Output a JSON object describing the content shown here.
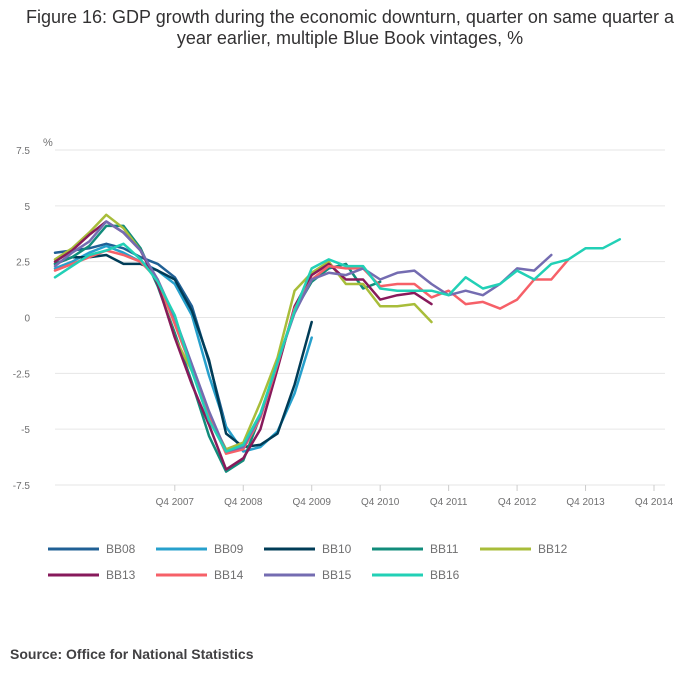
{
  "title": "Figure 16: GDP growth during the economic downturn, quarter on same quarter a year earlier, multiple Blue Book vintages, %",
  "source": "Source: Office for National Statistics",
  "chart_data": {
    "type": "line",
    "title": "Figure 16: GDP growth during the economic downturn, quarter on same quarter a year earlier, multiple Blue Book vintages, %",
    "ylabel": "%",
    "xlabel": "",
    "ylim": [
      -7.5,
      7.5
    ],
    "yticks": [
      {
        "value": 7.5,
        "label": "7.5"
      },
      {
        "value": 5,
        "label": "5"
      },
      {
        "value": 2.5,
        "label": "2.5"
      },
      {
        "value": 0,
        "label": "0"
      },
      {
        "value": -2.5,
        "label": "-2.5"
      },
      {
        "value": -5,
        "label": "-5"
      },
      {
        "value": -7.5,
        "label": "-7.5"
      }
    ],
    "x_start": "Q1 2006",
    "x_end": "Q4 2014",
    "x_count": 36,
    "xticks": [
      {
        "index": 7,
        "label": "Q4 2007"
      },
      {
        "index": 11,
        "label": "Q4 2008"
      },
      {
        "index": 15,
        "label": "Q4 2009"
      },
      {
        "index": 19,
        "label": "Q4 2010"
      },
      {
        "index": 23,
        "label": "Q4 2011"
      },
      {
        "index": 27,
        "label": "Q4 2012"
      },
      {
        "index": 31,
        "label": "Q4 2013"
      },
      {
        "index": 35,
        "label": "Q4 2014"
      }
    ],
    "grid": true,
    "legend_position": "bottom",
    "series": [
      {
        "name": "BB08",
        "color": "#206095",
        "start": 0,
        "values": [
          2.9,
          3.0,
          3.1,
          3.3,
          3.1,
          2.7,
          2.4,
          1.8,
          0.5,
          -2.0,
          -4.9
        ]
      },
      {
        "name": "BB09",
        "color": "#27a0cc",
        "start": 0,
        "values": [
          2.2,
          2.5,
          2.9,
          3.2,
          2.9,
          2.5,
          2.1,
          1.5,
          0.1,
          -2.6,
          -4.9,
          -6.0,
          -5.8,
          -5.1,
          -3.4,
          -0.9
        ]
      },
      {
        "name": "BB10",
        "color": "#003c57",
        "start": 0,
        "values": [
          2.4,
          2.7,
          2.7,
          2.8,
          2.4,
          2.4,
          2.1,
          1.7,
          0.3,
          -1.9,
          -5.2,
          -5.8,
          -5.7,
          -5.2,
          -3.0,
          -0.2
        ]
      },
      {
        "name": "BB11",
        "color": "#118c7b",
        "start": 0,
        "values": [
          2.4,
          2.7,
          3.2,
          4.1,
          4.1,
          3.1,
          1.4,
          -0.7,
          -2.9,
          -5.3,
          -6.9,
          -6.4,
          -4.4,
          -2.1,
          0.3,
          1.6,
          2.2,
          2.4,
          1.3,
          1.6
        ]
      },
      {
        "name": "BB12",
        "color": "#a8bd3a",
        "start": 0,
        "values": [
          2.6,
          3.1,
          3.8,
          4.6,
          4.0,
          3.0,
          1.6,
          -0.9,
          -2.4,
          -4.4,
          -5.9,
          -5.6,
          -3.8,
          -1.8,
          1.2,
          2.0,
          2.5,
          1.5,
          1.5,
          0.5,
          0.5,
          0.6,
          -0.2
        ]
      },
      {
        "name": "BB13",
        "color": "#871a5b",
        "start": 0,
        "values": [
          2.5,
          3.0,
          3.7,
          4.3,
          3.8,
          3.0,
          1.5,
          -0.9,
          -3.0,
          -4.8,
          -6.8,
          -6.3,
          -5.0,
          -2.3,
          0.5,
          1.9,
          2.4,
          1.7,
          1.7,
          0.8,
          1.0,
          1.1,
          0.6
        ]
      },
      {
        "name": "BB14",
        "color": "#f66068",
        "start": 0,
        "values": [
          2.1,
          2.4,
          2.7,
          3.0,
          2.8,
          2.5,
          1.7,
          -0.3,
          -2.3,
          -4.4,
          -6.1,
          -5.9,
          -4.5,
          -2.1,
          0.4,
          1.7,
          2.3,
          2.2,
          2.2,
          1.4,
          1.5,
          1.5,
          0.9,
          1.2,
          0.6,
          0.7,
          0.4,
          0.8,
          1.7,
          1.7,
          2.6
        ]
      },
      {
        "name": "BB15",
        "color": "#746cb1",
        "start": 0,
        "values": [
          2.3,
          2.9,
          3.4,
          4.3,
          3.8,
          3.0,
          1.7,
          0.0,
          -2.1,
          -4.2,
          -6.0,
          -5.8,
          -4.4,
          -2.0,
          0.2,
          1.7,
          2.0,
          1.9,
          2.2,
          1.7,
          2.0,
          2.1,
          1.5,
          1.0,
          1.2,
          1.0,
          1.5,
          2.2,
          2.1,
          2.8
        ]
      },
      {
        "name": "BB16",
        "color": "#22d0b6",
        "start": 0,
        "values": [
          1.8,
          2.3,
          2.8,
          3.0,
          3.3,
          2.6,
          1.6,
          0.1,
          -2.4,
          -4.6,
          -6.0,
          -5.7,
          -4.3,
          -2.0,
          0.3,
          2.2,
          2.6,
          2.3,
          2.3,
          1.3,
          1.2,
          1.2,
          1.2,
          1.0,
          1.8,
          1.3,
          1.5,
          2.1,
          1.7,
          2.4,
          2.6,
          3.1,
          3.1,
          3.5
        ]
      }
    ]
  }
}
